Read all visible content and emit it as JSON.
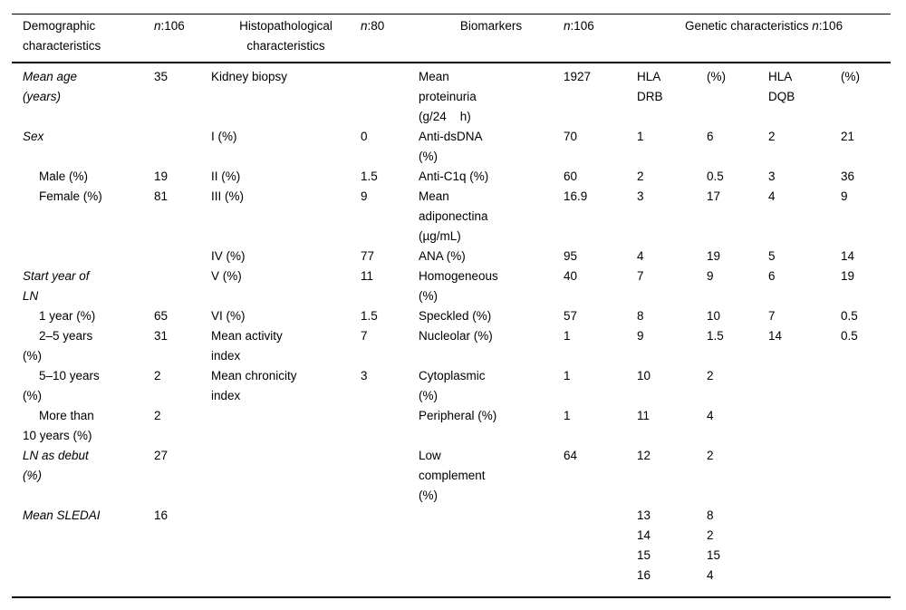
{
  "table": {
    "header": {
      "demographic": "Demographic\ncharacteristics",
      "histopathological": "Histopathological\ncharacteristics",
      "biomarkers": "Biomarkers",
      "genetic": "Genetic characteristics ",
      "n_sym": "n",
      "n106": ":106",
      "n80": ":80"
    },
    "rows": [
      [
        {
          "text": "Mean age\n(years)",
          "italic": true
        },
        "35",
        "Kidney biopsy",
        "",
        "Mean\nproteinuria\n(g/24    h)",
        "1927",
        "HLA\nDRB",
        "(%)",
        "HLA\nDQB",
        "(%)"
      ],
      [
        {
          "text": "Sex",
          "italic": true
        },
        "",
        "I (%)",
        "0",
        "Anti-dsDNA\n(%)",
        "70",
        "1",
        "6",
        "2",
        "21"
      ],
      [
        {
          "text": "Male (%)",
          "indent": true
        },
        "19",
        "II (%)",
        "1.5",
        "Anti-C1q (%)",
        "60",
        "2",
        "0.5",
        "3",
        "36"
      ],
      [
        {
          "text": "Female (%)",
          "indent": true
        },
        "81",
        "III (%)",
        "9",
        "Mean\nadiponectina\n(µg/mL)",
        "16.9",
        "3",
        "17",
        "4",
        "9"
      ],
      [
        "",
        "",
        "IV (%)",
        "77",
        "ANA (%)",
        "95",
        "4",
        "19",
        "5",
        "14"
      ],
      [
        {
          "text": "Start year of\nLN",
          "italic": true
        },
        "",
        "V (%)",
        "11",
        "Homogeneous\n(%)",
        "40",
        "7",
        "9",
        "6",
        "19"
      ],
      [
        {
          "text": "1 year (%)",
          "indent": true
        },
        "65",
        "VI (%)",
        "1.5",
        "Speckled (%)",
        "57",
        "8",
        "10",
        "7",
        "0.5"
      ],
      [
        {
          "text": "2–5 years\n(%)",
          "indent": true
        },
        "31",
        "Mean activity\nindex",
        "7",
        "Nucleolar (%)",
        "1",
        "9",
        "1.5",
        "14",
        "0.5"
      ],
      [
        {
          "text": "5–10 years\n(%)",
          "indent": true
        },
        "2",
        "Mean chronicity\nindex",
        "3",
        "Cytoplasmic\n(%)",
        "1",
        "10",
        "2",
        "",
        ""
      ],
      [
        {
          "text": "More than\n10 years (%)",
          "indent": true
        },
        "2",
        "",
        "",
        "Peripheral (%)",
        "1",
        "11",
        "4",
        "",
        ""
      ],
      [
        {
          "text": "LN as debut\n(%)",
          "italic": true
        },
        "27",
        "",
        "",
        "Low\ncomplement\n(%)",
        "64",
        "12",
        "2",
        "",
        ""
      ],
      [
        {
          "text": "Mean SLEDAI",
          "italic": true
        },
        "16",
        "",
        "",
        "",
        "",
        "13",
        "8",
        "",
        ""
      ],
      [
        "",
        "",
        "",
        "",
        "",
        "",
        "14",
        "2",
        "",
        ""
      ],
      [
        "",
        "",
        "",
        "",
        "",
        "",
        "15",
        "15",
        "",
        ""
      ],
      [
        "",
        "",
        "",
        "",
        "",
        "",
        "16",
        "4",
        "",
        ""
      ]
    ]
  }
}
